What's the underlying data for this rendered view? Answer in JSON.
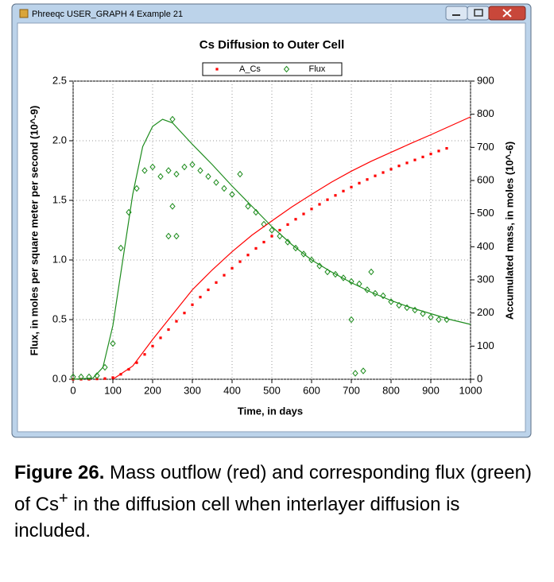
{
  "window": {
    "title": "Phreeqc USER_GRAPH 4 Example 21"
  },
  "chart_data": {
    "type": "scatter",
    "title": "Cs Diffusion to Outer Cell",
    "xlabel": "Time, in days",
    "ylabel": "Flux, in moles per square meter per second (10^-9)",
    "y2label": "Accumulated mass, in moles (10^-6)",
    "xlim": [
      0,
      1000
    ],
    "xticks": [
      0,
      100,
      200,
      300,
      400,
      500,
      600,
      700,
      800,
      900,
      1000
    ],
    "ylim": [
      0,
      2.5
    ],
    "yticks": [
      {
        "value": 0,
        "label": "0.0"
      },
      {
        "value": 0.5,
        "label": "0.5"
      },
      {
        "value": 1,
        "label": "1.0"
      },
      {
        "value": 1.5,
        "label": "1.5"
      },
      {
        "value": 2,
        "label": "2.0"
      },
      {
        "value": 2.5,
        "label": "2.5"
      }
    ],
    "y2lim": [
      0,
      900
    ],
    "y2ticks": [
      0,
      100,
      200,
      300,
      400,
      500,
      600,
      700,
      800,
      900
    ],
    "grid": true,
    "legend": "top",
    "series": [
      {
        "name": "A_Cs",
        "color": "#ff0000",
        "axis": "y2",
        "mode": "markers",
        "marker": "square",
        "x": [
          0,
          20,
          40,
          60,
          80,
          100,
          120,
          140,
          160,
          180,
          200,
          220,
          240,
          260,
          280,
          300,
          320,
          340,
          360,
          380,
          400,
          420,
          440,
          460,
          480,
          500,
          520,
          540,
          560,
          580,
          600,
          620,
          640,
          660,
          680,
          700,
          720,
          740,
          760,
          780,
          800,
          820,
          840,
          860,
          880,
          900,
          920,
          940
        ],
        "values": [
          0,
          0,
          0,
          1,
          2,
          5,
          15,
          30,
          50,
          75,
          100,
          125,
          150,
          175,
          200,
          225,
          248,
          270,
          292,
          314,
          335,
          355,
          375,
          395,
          414,
          432,
          450,
          467,
          483,
          499,
          514,
          528,
          542,
          555,
          568,
          580,
          592,
          603,
          614,
          624,
          634,
          644,
          653,
          662,
          671,
          680,
          689,
          697
        ]
      },
      {
        "name": "Flux",
        "color": "#1e8c1e",
        "mode": "markers",
        "marker": "diamond",
        "x": [
          0,
          20,
          40,
          60,
          80,
          100,
          120,
          140,
          160,
          180,
          200,
          220,
          240,
          260,
          280,
          300,
          320,
          340,
          360,
          380,
          400,
          420,
          440,
          460,
          480,
          500,
          520,
          540,
          560,
          580,
          600,
          620,
          640,
          660,
          680,
          700,
          720,
          740,
          760,
          780,
          800,
          820,
          840,
          860,
          880,
          900,
          920,
          940,
          240,
          260,
          250,
          250,
          710,
          730,
          700,
          750
        ],
        "values": [
          0.02,
          0.02,
          0.02,
          0.03,
          0.1,
          0.3,
          1.1,
          1.4,
          1.6,
          1.75,
          1.78,
          1.7,
          1.75,
          1.72,
          1.78,
          1.8,
          1.75,
          1.7,
          1.65,
          1.6,
          1.55,
          1.72,
          1.45,
          1.4,
          1.3,
          1.25,
          1.2,
          1.15,
          1.1,
          1.05,
          1.0,
          0.95,
          0.9,
          0.88,
          0.85,
          0.82,
          0.8,
          0.75,
          0.72,
          0.7,
          0.65,
          0.62,
          0.6,
          0.58,
          0.55,
          0.52,
          0.5,
          0.5,
          1.2,
          1.2,
          2.18,
          1.45,
          0.05,
          0.07,
          0.5,
          0.9
        ]
      },
      {
        "color": "#ff0000",
        "axis": "y2",
        "mode": "lines",
        "x": [
          100,
          150,
          200,
          250,
          300,
          350,
          400,
          450,
          500,
          550,
          600,
          650,
          700,
          750,
          800,
          850,
          900,
          950,
          1000
        ],
        "values": [
          0,
          40,
          120,
          195,
          270,
          330,
          385,
          435,
          478,
          520,
          558,
          595,
          628,
          658,
          685,
          712,
          738,
          765,
          792
        ]
      },
      {
        "color": "#1e8c1e",
        "mode": "lines",
        "x": [
          0,
          50,
          75,
          100,
          125,
          150,
          175,
          200,
          225,
          250,
          300,
          350,
          400,
          450,
          500,
          550,
          600,
          650,
          700,
          750,
          800,
          850,
          900,
          950,
          1000
        ],
        "values": [
          0,
          0.01,
          0.1,
          0.45,
          1.0,
          1.55,
          1.95,
          2.12,
          2.18,
          2.15,
          1.97,
          1.8,
          1.62,
          1.45,
          1.28,
          1.13,
          1.0,
          0.9,
          0.81,
          0.73,
          0.66,
          0.6,
          0.55,
          0.5,
          0.46
        ]
      }
    ]
  },
  "caption": {
    "label": "Figure 26.",
    "text": "Mass outflow (red) and corresponding flux (green) of Cs",
    "superscript": "+",
    "text_end": " in the diffusion cell when interlayer diffusion is included."
  }
}
